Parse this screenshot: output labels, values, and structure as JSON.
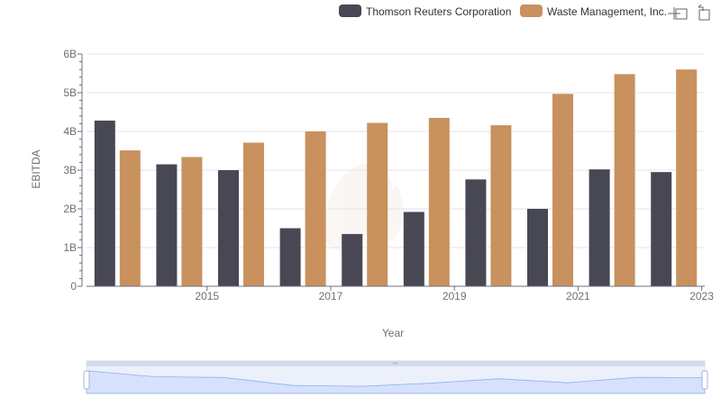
{
  "chart_data": {
    "type": "bar",
    "title": "",
    "xlabel": "Year",
    "ylabel": "EBITDA",
    "categories": [
      "2014",
      "2015",
      "2016",
      "2017",
      "2018",
      "2019",
      "2020",
      "2021",
      "2022",
      "2023"
    ],
    "x_tick_labels": [
      "2015",
      "2017",
      "2019",
      "2021",
      "2023"
    ],
    "y_ticks": [
      0,
      1000000000,
      2000000000,
      3000000000,
      4000000000,
      5000000000,
      6000000000
    ],
    "y_tick_labels": [
      "0",
      "1B",
      "2B",
      "3B",
      "4B",
      "5B",
      "6B"
    ],
    "ylim": [
      0,
      6000000000
    ],
    "grid": true,
    "legend_position": "top-right",
    "series": [
      {
        "name": "Thomson Reuters Corporation",
        "color": "#484854",
        "values": [
          4280000000,
          3150000000,
          3000000000,
          1500000000,
          1350000000,
          1920000000,
          2760000000,
          2000000000,
          3020000000,
          2950000000
        ]
      },
      {
        "name": "Waste Management, Inc.",
        "color": "#c8915e",
        "values": [
          3510000000,
          3340000000,
          3710000000,
          4000000000,
          4220000000,
          4350000000,
          4160000000,
          4970000000,
          5480000000,
          5600000000
        ]
      }
    ]
  },
  "toolbar": {
    "zoom_icon": "zoom-select-icon",
    "restore_icon": "restore-icon"
  },
  "data_zoom": {
    "start_percent": 0,
    "end_percent": 100
  }
}
